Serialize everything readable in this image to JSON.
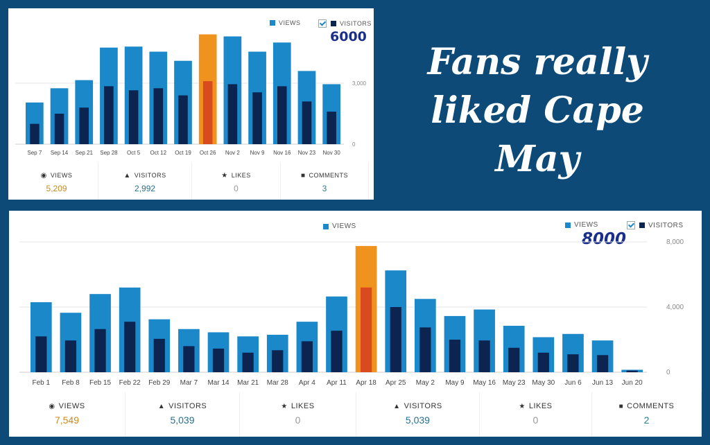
{
  "tagline": [
    "Fans really",
    "liked Cape May"
  ],
  "colors": {
    "views": "#1a88c9",
    "visitors": "#0c2450",
    "highlight_views": "#f0921e",
    "highlight_visitors": "#d94b1f",
    "background": "#0d4a78"
  },
  "chart_data": [
    {
      "type": "bar",
      "legend": [
        "VIEWS",
        "VISITORS"
      ],
      "annotation": "6000",
      "categories": [
        "Sep 7",
        "Sep 14",
        "Sep 21",
        "Sep 28",
        "Oct 5",
        "Oct 12",
        "Oct 19",
        "Oct 26",
        "Nov 2",
        "Nov 9",
        "Nov 16",
        "Nov 23",
        "Nov 30"
      ],
      "series": [
        {
          "name": "VIEWS",
          "values": [
            2050,
            2750,
            3150,
            4750,
            4800,
            4550,
            4100,
            5400,
            5300,
            4550,
            5000,
            3600,
            2950
          ]
        },
        {
          "name": "VISITORS",
          "values": [
            1000,
            1500,
            1800,
            2850,
            2650,
            2750,
            2400,
            3100,
            2950,
            2550,
            2850,
            2100,
            1600
          ]
        }
      ],
      "highlight_index": 7,
      "yticks": [
        "3,000",
        "0"
      ],
      "ylim": [
        0,
        6000
      ],
      "grid": true,
      "stats": [
        {
          "label": "VIEWS",
          "value": "5,209",
          "icon": "eye-icon"
        },
        {
          "label": "VISITORS",
          "value": "2,992",
          "icon": "person-icon"
        },
        {
          "label": "LIKES",
          "value": "0",
          "icon": "star-icon"
        },
        {
          "label": "COMMENTS",
          "value": "3",
          "icon": "comment-icon"
        }
      ]
    },
    {
      "type": "bar",
      "legend": [
        "VIEWS",
        "VISITORS"
      ],
      "legend_partial": "VIEWS",
      "annotation": "8000",
      "categories": [
        "Feb 1",
        "Feb 8",
        "Feb 15",
        "Feb 22",
        "Feb 29",
        "Mar 7",
        "Mar 14",
        "Mar 21",
        "Mar 28",
        "Apr 4",
        "Apr 11",
        "Apr 18",
        "Apr 25",
        "May 2",
        "May 9",
        "May 16",
        "May 23",
        "May 30",
        "Jun 6",
        "Jun 13",
        "Jun 20"
      ],
      "series": [
        {
          "name": "VIEWS",
          "values": [
            4300,
            3650,
            4800,
            5200,
            3250,
            2650,
            2450,
            2200,
            2300,
            3100,
            4650,
            7750,
            6250,
            4500,
            3450,
            3850,
            2850,
            2150,
            2350,
            1950,
            150
          ]
        },
        {
          "name": "VISITORS",
          "values": [
            2200,
            1950,
            2650,
            3100,
            2050,
            1600,
            1450,
            1200,
            1350,
            1900,
            2550,
            5200,
            4000,
            2750,
            2000,
            1950,
            1500,
            1200,
            1100,
            1050,
            100
          ]
        }
      ],
      "highlight_index": 11,
      "yticks": [
        "8,000",
        "4,000",
        "0"
      ],
      "ylim": [
        0,
        8000
      ],
      "grid": true,
      "stats": [
        {
          "label": "VIEWS",
          "value": "7,549",
          "icon": "eye-icon"
        },
        {
          "label": "VISITORS",
          "value": "5,039",
          "icon": "person-icon"
        },
        {
          "label": "LIKES",
          "value": "0",
          "icon": "star-icon"
        },
        {
          "label": "VISITORS",
          "value": "5,039",
          "icon": "person-icon"
        },
        {
          "label": "LIKES",
          "value": "0",
          "icon": "star-icon"
        },
        {
          "label": "COMMENTS",
          "value": "2",
          "icon": "comment-icon"
        }
      ]
    }
  ]
}
